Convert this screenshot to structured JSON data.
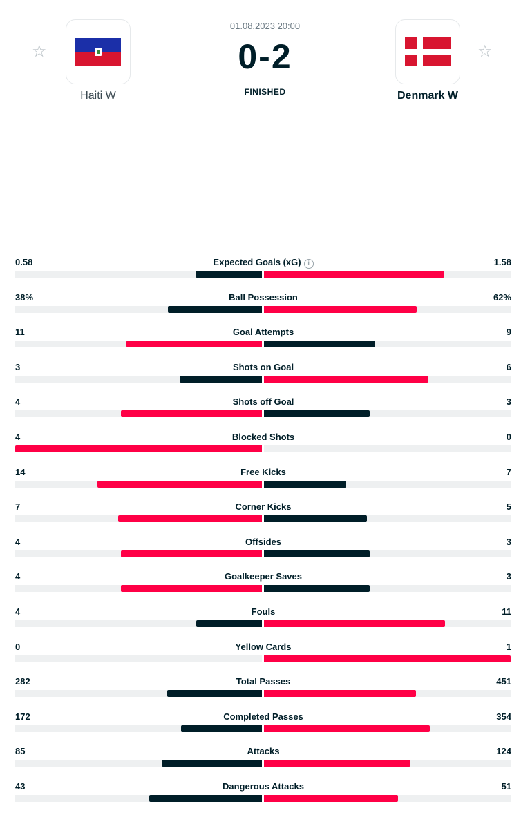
{
  "match": {
    "datetime": "01.08.2023 20:00",
    "score": "0-2",
    "status": "FINISHED",
    "home": {
      "name": "Haiti W",
      "flag_icon": "haiti-flag-icon"
    },
    "away": {
      "name": "Denmark W",
      "flag_icon": "denmark-flag-icon"
    }
  },
  "colors": {
    "winner": "#ff0046",
    "loser": "#001e28",
    "track": "#eef0f1"
  },
  "stats": [
    {
      "label": "Expected Goals (xG)",
      "home": "0.58",
      "away": "1.58",
      "home_num": 0.58,
      "away_num": 1.58,
      "info": "i"
    },
    {
      "label": "Ball Possession",
      "home": "38%",
      "away": "62%",
      "home_num": 38,
      "away_num": 62
    },
    {
      "label": "Goal Attempts",
      "home": "11",
      "away": "9",
      "home_num": 11,
      "away_num": 9
    },
    {
      "label": "Shots on Goal",
      "home": "3",
      "away": "6",
      "home_num": 3,
      "away_num": 6
    },
    {
      "label": "Shots off Goal",
      "home": "4",
      "away": "3",
      "home_num": 4,
      "away_num": 3
    },
    {
      "label": "Blocked Shots",
      "home": "4",
      "away": "0",
      "home_num": 4,
      "away_num": 0
    },
    {
      "label": "Free Kicks",
      "home": "14",
      "away": "7",
      "home_num": 14,
      "away_num": 7
    },
    {
      "label": "Corner Kicks",
      "home": "7",
      "away": "5",
      "home_num": 7,
      "away_num": 5
    },
    {
      "label": "Offsides",
      "home": "4",
      "away": "3",
      "home_num": 4,
      "away_num": 3
    },
    {
      "label": "Goalkeeper Saves",
      "home": "4",
      "away": "3",
      "home_num": 4,
      "away_num": 3
    },
    {
      "label": "Fouls",
      "home": "4",
      "away": "11",
      "home_num": 4,
      "away_num": 11
    },
    {
      "label": "Yellow Cards",
      "home": "0",
      "away": "1",
      "home_num": 0,
      "away_num": 1
    },
    {
      "label": "Total Passes",
      "home": "282",
      "away": "451",
      "home_num": 282,
      "away_num": 451
    },
    {
      "label": "Completed Passes",
      "home": "172",
      "away": "354",
      "home_num": 172,
      "away_num": 354
    },
    {
      "label": "Attacks",
      "home": "85",
      "away": "124",
      "home_num": 85,
      "away_num": 124
    },
    {
      "label": "Dangerous Attacks",
      "home": "43",
      "away": "51",
      "home_num": 43,
      "away_num": 51
    }
  ]
}
